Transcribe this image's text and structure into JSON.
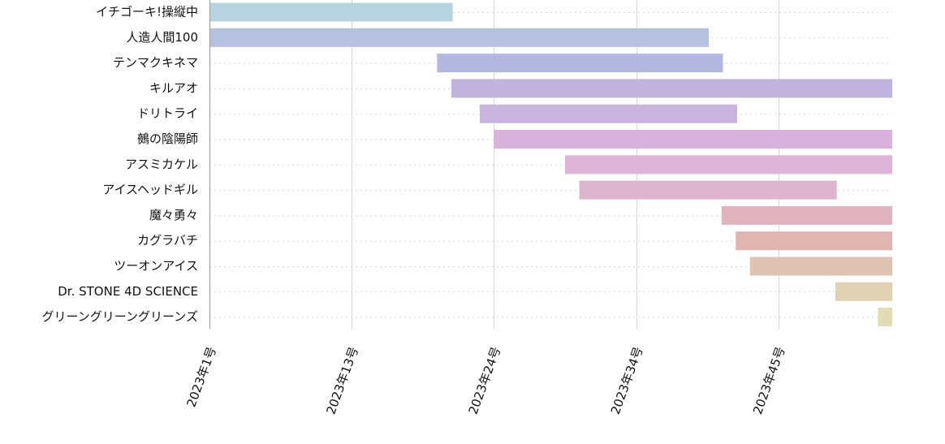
{
  "chart_data": {
    "type": "gantt",
    "title": "",
    "x_axis": {
      "min": 1,
      "max": 49,
      "ticks": [
        {
          "value": 1,
          "label": "2023年1号"
        },
        {
          "value": 11,
          "label": "2023年13号"
        },
        {
          "value": 21,
          "label": "2023年24号"
        },
        {
          "value": 31,
          "label": "2023年34号"
        },
        {
          "value": 41,
          "label": "2023年45号"
        }
      ]
    },
    "series": [
      {
        "name": "イチゴーキ!操縦中",
        "start": 1,
        "end": 18.1,
        "color": "#b5d4df"
      },
      {
        "name": "人造人間100",
        "start": 1,
        "end": 36.1,
        "color": "#b4c2df"
      },
      {
        "name": "テンマクキネマ",
        "start": 17.0,
        "end": 37.1,
        "color": "#b4b7e0"
      },
      {
        "name": "キルアオ",
        "start": 18.0,
        "end": 49,
        "color": "#c0b4df"
      },
      {
        "name": "ドリトライ",
        "start": 20.0,
        "end": 38.1,
        "color": "#cbb4df"
      },
      {
        "name": "鵺の陰陽師",
        "start": 21.0,
        "end": 49,
        "color": "#d8b2dd"
      },
      {
        "name": "アスミカケル",
        "start": 26.0,
        "end": 49,
        "color": "#deb4d8"
      },
      {
        "name": "アイスヘッドギル",
        "start": 27.0,
        "end": 45.1,
        "color": "#dfb4cd"
      },
      {
        "name": "魔々勇々",
        "start": 37.0,
        "end": 49,
        "color": "#dfb4c0"
      },
      {
        "name": "カグラバチ",
        "start": 38.0,
        "end": 49,
        "color": "#dfb4b1"
      },
      {
        "name": "ツーオンアイス",
        "start": 39.0,
        "end": 49,
        "color": "#dfc4b4"
      },
      {
        "name": "Dr. STONE 4D SCIENCE",
        "start": 45.0,
        "end": 49,
        "color": "#e0d1b3"
      },
      {
        "name": "グリーングリーングリーンズ",
        "start": 48.0,
        "end": 49,
        "color": "#e2dcb4"
      }
    ]
  }
}
